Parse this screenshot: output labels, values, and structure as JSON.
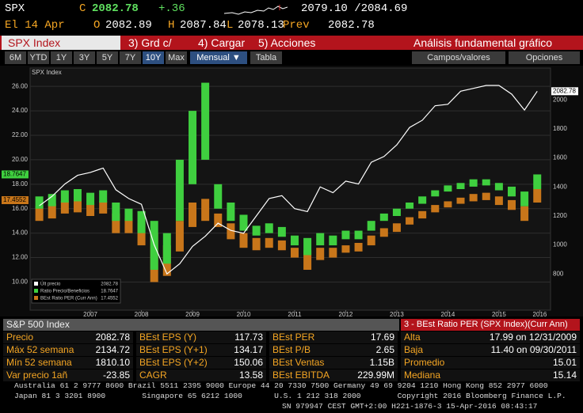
{
  "header": {
    "ticker": "SPX",
    "c_label": "C",
    "last": "2082.78",
    "change": "+.36",
    "bid_ask": "2079.10 /2084.69",
    "date": "El 14 Apr",
    "open_label": "O",
    "open": "2082.89",
    "high_label": "H",
    "high": "2087.84",
    "low_label": "L",
    "low": "2078.13",
    "prev_label": "Prev",
    "prev": "2082.78"
  },
  "menu": {
    "security": "SPX Index",
    "items": [
      "3) Grd c/",
      "4) Cargar",
      "5) Acciones"
    ],
    "title": "Análisis fundamental gráfico"
  },
  "toolbar": {
    "ranges": [
      "6M",
      "YTD",
      "1Y",
      "3Y",
      "5Y",
      "7Y",
      "10Y",
      "Max"
    ],
    "active": "10Y",
    "period": "Mensual ▼",
    "table": "Tabla",
    "fields": "Campos/valores",
    "options": "Opciones"
  },
  "chart_data": {
    "type": "combo",
    "label": "SPX Index",
    "x": [
      2006.5,
      2006.75,
      2007,
      2007.25,
      2007.5,
      2007.75,
      2008,
      2008.25,
      2008.5,
      2008.75,
      2009,
      2009.25,
      2009.5,
      2009.75,
      2010,
      2010.25,
      2010.5,
      2010.75,
      2011,
      2011.25,
      2011.5,
      2011.75,
      2012,
      2012.25,
      2012.5,
      2012.75,
      2013,
      2013.25,
      2013.5,
      2013.75,
      2014,
      2014.25,
      2014.5,
      2014.75,
      2015,
      2015.25,
      2015.5,
      2015.75,
      2016,
      2016.25
    ],
    "xlim": [
      2006.32,
      2016.51
    ],
    "xticks": [
      {
        "value": 2007.5,
        "label": "2007"
      },
      {
        "value": 2008.5,
        "label": "2008"
      },
      {
        "value": 2009.5,
        "label": "2009"
      },
      {
        "value": 2010.5,
        "label": "2010"
      },
      {
        "value": 2011.5,
        "label": "2011"
      },
      {
        "value": 2012.5,
        "label": "2012"
      },
      {
        "value": 2013.5,
        "label": "2013"
      },
      {
        "value": 2014.5,
        "label": "2014"
      },
      {
        "value": 2015.5,
        "label": "2015"
      },
      {
        "value": 2016.3,
        "label": "2016"
      }
    ],
    "ylim": [
      7.7,
      27.5
    ],
    "yticks": [
      {
        "value": 10,
        "label": "10.00"
      },
      {
        "value": 12,
        "label": "12.00"
      },
      {
        "value": 14,
        "label": "14.00"
      },
      {
        "value": 16,
        "label": "16.00"
      },
      {
        "value": 18,
        "label": "18.00"
      },
      {
        "value": 20,
        "label": "20.00"
      },
      {
        "value": 22,
        "label": "22.00"
      },
      {
        "value": 24,
        "label": "24.00"
      },
      {
        "value": 26,
        "label": "26.00"
      }
    ],
    "y2lim": [
      550,
      2220
    ],
    "y2ticks": [
      800,
      1000,
      1200,
      1400,
      1600,
      1800,
      2000
    ],
    "grid": true,
    "series": [
      {
        "name": "Últ precio",
        "type": "line",
        "axis": "y2",
        "color": "#ffffff",
        "last": "2082.78",
        "values": [
          1270,
          1335,
          1420,
          1480,
          1500,
          1530,
          1380,
          1320,
          1280,
          1000,
          800,
          870,
          990,
          1060,
          1150,
          1100,
          1080,
          1200,
          1320,
          1340,
          1250,
          1230,
          1400,
          1360,
          1440,
          1420,
          1570,
          1610,
          1690,
          1810,
          1860,
          1960,
          1970,
          2060,
          2080,
          2100,
          2100,
          2040,
          1930,
          2060
        ]
      },
      {
        "name": "BEst Ratio PER (Curr Ann)",
        "type": "range_bar",
        "color": "#c8761a",
        "last": "17.4552",
        "low": [
          15.0,
          15.2,
          15.6,
          15.7,
          15.4,
          15.6,
          14.0,
          14.0,
          13.0,
          10.0,
          10.5,
          12.5,
          14.5,
          15.0,
          14.5,
          13.5,
          12.8,
          12.6,
          12.8,
          12.6,
          12.0,
          11.0,
          11.8,
          12.0,
          12.4,
          12.5,
          13.0,
          13.7,
          14.1,
          14.7,
          15.2,
          15.7,
          16.1,
          16.4,
          16.6,
          16.7,
          16.3,
          15.9,
          15.0,
          16.5
        ],
        "high": [
          16.2,
          16.4,
          16.6,
          16.7,
          16.4,
          16.6,
          15.6,
          15.2,
          14.8,
          14.0,
          13.0,
          15.0,
          16.5,
          16.8,
          15.6,
          14.8,
          14.0,
          13.6,
          13.6,
          13.4,
          12.8,
          12.6,
          12.8,
          12.8,
          13.0,
          13.2,
          13.8,
          14.4,
          14.8,
          15.3,
          15.8,
          16.3,
          16.6,
          16.9,
          17.2,
          17.3,
          17.0,
          16.7,
          16.2,
          17.6
        ]
      },
      {
        "name": "Ratio Precio/Beneficios",
        "type": "range_bar",
        "color": "#3fcf3f",
        "last": "18.7647",
        "low": [
          16.0,
          16.2,
          16.5,
          16.6,
          16.3,
          16.5,
          15.0,
          15.0,
          14.0,
          11.0,
          11.5,
          15.0,
          18.0,
          20.0,
          16.0,
          15.0,
          14.2,
          13.8,
          14.0,
          13.7,
          13.0,
          12.2,
          13.0,
          13.0,
          13.5,
          13.5,
          14.2,
          15.0,
          15.4,
          16.0,
          16.4,
          17.0,
          17.4,
          17.6,
          17.8,
          17.9,
          17.5,
          17.0,
          16.2,
          17.6
        ],
        "high": [
          17.0,
          17.2,
          17.5,
          17.6,
          17.3,
          17.5,
          16.5,
          16.0,
          15.8,
          15.0,
          14.0,
          20.0,
          24.0,
          26.3,
          18.0,
          16.5,
          15.5,
          14.6,
          14.8,
          14.5,
          13.8,
          13.6,
          14.0,
          13.8,
          14.2,
          14.2,
          15.0,
          15.6,
          16.0,
          16.5,
          17.0,
          17.5,
          17.9,
          18.1,
          18.4,
          18.4,
          18.1,
          17.8,
          17.4,
          18.8
        ]
      }
    ]
  },
  "table": {
    "title": "S&P 500 Index",
    "right_title": "3 - BEst Ratio PER (SPX Index)(Curr Ann)",
    "rows": [
      [
        [
          "Precio",
          "2082.78"
        ],
        [
          "BEst EPS (Y)",
          "117.73"
        ],
        [
          "BEst PER",
          "17.69"
        ],
        [
          "Alta",
          "17.99 on 12/31/2009"
        ]
      ],
      [
        [
          "Máx 52 semana",
          "2134.72"
        ],
        [
          "BEst EPS (Y+1)",
          "134.17"
        ],
        [
          "BEst P/B",
          "2.65"
        ],
        [
          "Baja",
          "11.40 on 09/30/2011"
        ]
      ],
      [
        [
          "Mín 52 semana",
          "1810.10"
        ],
        [
          "BEst EPS (Y+2)",
          "150.06"
        ],
        [
          "BEst Ventas",
          "1.15B"
        ],
        [
          "Promedio",
          "15.01"
        ]
      ],
      [
        [
          "Var precio 1añ",
          "-23.85"
        ],
        [
          "CAGR",
          "13.58"
        ],
        [
          "BEst EBITDA",
          "229.99M"
        ],
        [
          "Mediana",
          "15.14"
        ]
      ]
    ]
  },
  "footer": [
    "Australia 61 2 9777 8600 Brazil 5511 2395 9000 Europe 44 20 7330 7500 Germany 49 69 9204 1210 Hong Kong 852 2977 6000",
    "Japan 81 3 3201 8900        Singapore 65 6212 1000       U.S. 1 212 318 2000        Copyright 2016 Bloomberg Finance L.P.",
    "SN 979947 CEST GMT+2:00 H221-1876-3 15-Apr-2016 08:43:17"
  ]
}
